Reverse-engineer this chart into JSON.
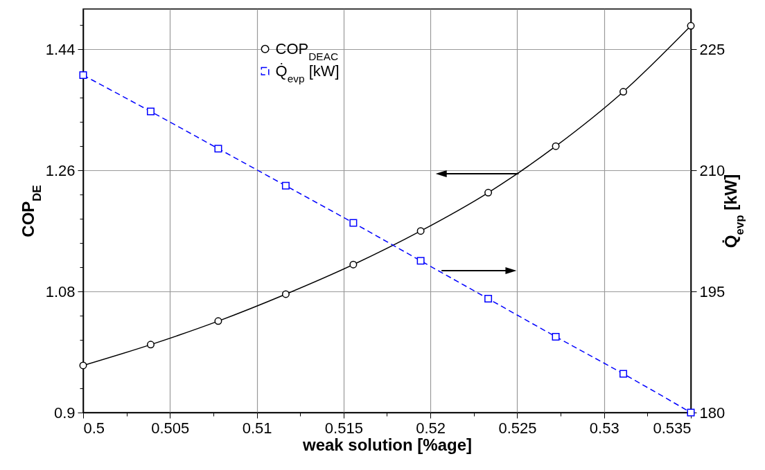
{
  "chart_data": {
    "type": "line",
    "xlabel": "weak solution [%age]",
    "ylabel": "COP$_{DE}$",
    "y2label": "Q̇$_{evp}$ [kW]",
    "x": [
      0.5,
      0.50389,
      0.50778,
      0.51167,
      0.51556,
      0.51944,
      0.52333,
      0.52722,
      0.53111,
      0.535
    ],
    "series": [
      {
        "name": "COP$_{DEAC}$",
        "color": "#000000",
        "marker": "circle",
        "line_style": "solid",
        "values": [
          0.97,
          1.001,
          1.036,
          1.076,
          1.12,
          1.17,
          1.227,
          1.296,
          1.377,
          1.475
        ]
      },
      {
        "name": "Q̇$_{evp}$ [kW]",
        "color": "#0000ff",
        "marker": "square",
        "line_style": "dashed",
        "axis": "y2",
        "values": [
          221.8,
          217.3,
          212.7,
          208.1,
          203.5,
          198.8,
          194.1,
          189.4,
          184.8,
          180.0
        ]
      }
    ],
    "xlim": [
      0.5,
      0.535
    ],
    "xticks": [
      0.5,
      {
        "value": 0.5025,
        "label": null
      },
      0.505,
      {
        "value": 0.5075,
        "label": null
      },
      0.51,
      {
        "value": 0.5125,
        "label": null
      },
      0.515,
      {
        "value": 0.5175,
        "label": null
      },
      0.52,
      {
        "value": 0.5225,
        "label": null
      },
      0.525,
      {
        "value": 0.5275,
        "label": null
      },
      0.53,
      {
        "value": 0.5325,
        "label": null
      },
      0.535
    ],
    "ylim": [
      0.9,
      1.5
    ],
    "yticks": [
      0.9,
      {
        "value": 0.936,
        "label": null
      },
      {
        "value": 0.972,
        "label": null
      },
      {
        "value": 1.008,
        "label": null
      },
      {
        "value": 1.044,
        "label": null
      },
      1.08,
      {
        "value": 1.116,
        "label": null
      },
      {
        "value": 1.152,
        "label": null
      },
      {
        "value": 1.188,
        "label": null
      },
      {
        "value": 1.224,
        "label": null
      },
      1.26,
      {
        "value": 1.296,
        "label": null
      },
      {
        "value": 1.332,
        "label": null
      },
      {
        "value": 1.368,
        "label": null
      },
      {
        "value": 1.404,
        "label": null
      },
      1.44,
      {
        "value": 1.476,
        "label": null
      }
    ],
    "y2lim": [
      180,
      230
    ],
    "y2ticks": [
      180,
      195,
      210,
      225
    ],
    "grid": true,
    "legend": "top"
  }
}
